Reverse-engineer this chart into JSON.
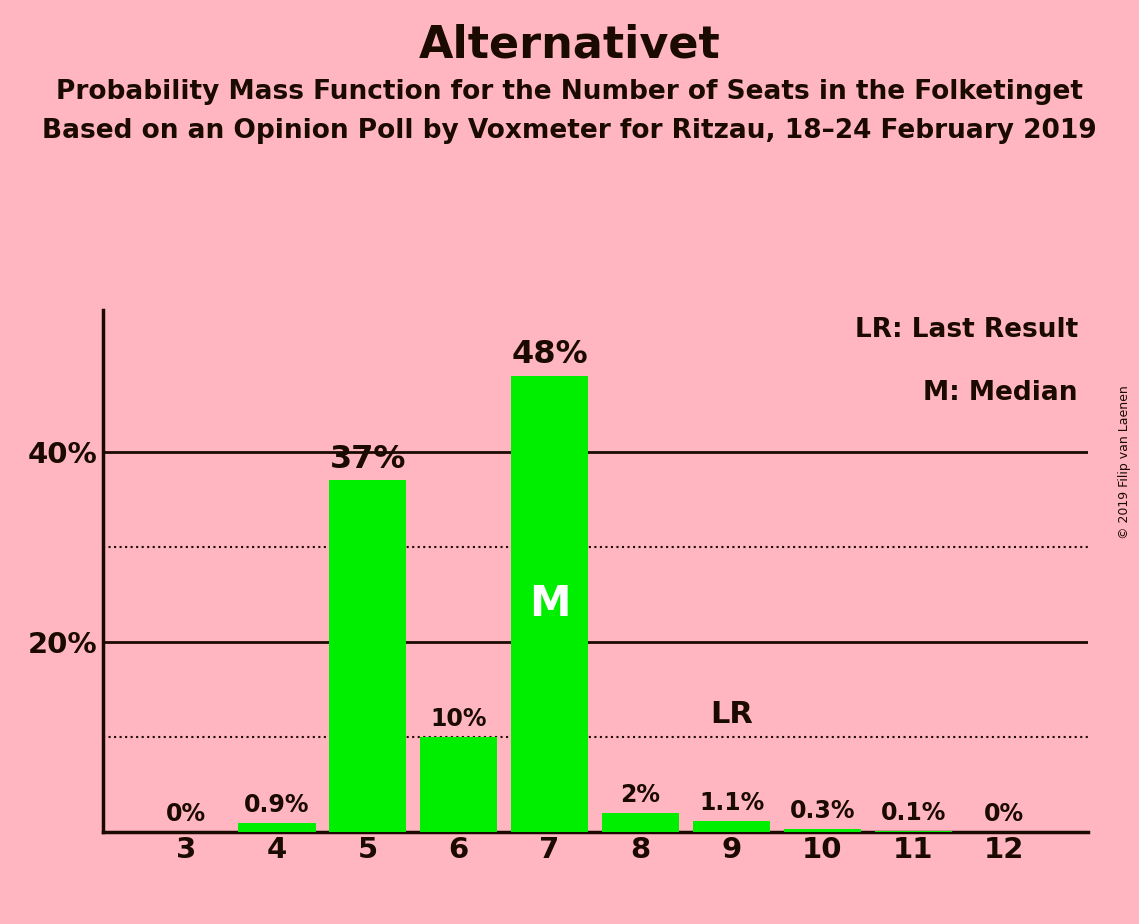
{
  "title": "Alternativet",
  "subtitle1": "Probability Mass Function for the Number of Seats in the Folketinget",
  "subtitle2": "Based on an Opinion Poll by Voxmeter for Ritzau, 18–24 February 2019",
  "watermark": "© 2019 Filip van Laenen",
  "categories": [
    3,
    4,
    5,
    6,
    7,
    8,
    9,
    10,
    11,
    12
  ],
  "values": [
    0.0,
    0.9,
    37.0,
    10.0,
    48.0,
    2.0,
    1.1,
    0.3,
    0.1,
    0.0
  ],
  "labels": [
    "0%",
    "0.9%",
    "37%",
    "10%",
    "48%",
    "2%",
    "1.1%",
    "0.3%",
    "0.1%",
    "0%"
  ],
  "bar_color": "#00ee00",
  "background_color": "#ffb6c1",
  "text_color": "#1a0a00",
  "median_seat": 7,
  "median_label": "M",
  "lr_seat": 9,
  "lr_label": "LR",
  "legend_lr": "LR: Last Result",
  "legend_m": "M: Median",
  "ylim": [
    0,
    55
  ],
  "title_fontsize": 32,
  "subtitle_fontsize": 19,
  "label_fontsize_small": 17,
  "label_fontsize_large": 23,
  "axis_fontsize": 21,
  "legend_fontsize": 19,
  "median_label_fontsize": 30,
  "lr_label_fontsize": 22,
  "watermark_fontsize": 9
}
